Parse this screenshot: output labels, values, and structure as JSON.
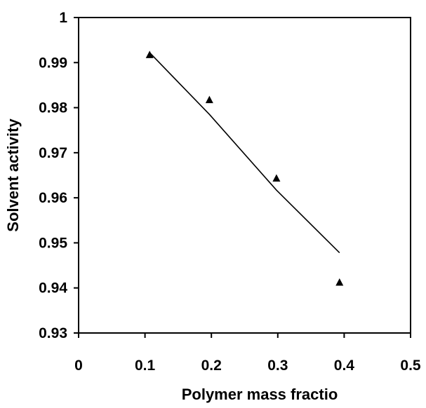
{
  "chart_data": {
    "type": "scatter",
    "title": "",
    "xlabel": "Polymer mass fractio",
    "ylabel": "Solvent activity",
    "xlim": [
      0,
      0.5
    ],
    "ylim": [
      0.93,
      1
    ],
    "x_ticks": [
      "0",
      "0.1",
      "0.2",
      "0.3",
      "0.4",
      "0.5"
    ],
    "y_ticks": [
      "0.93",
      "0.94",
      "0.95",
      "0.96",
      "0.97",
      "0.98",
      "0.99",
      "1"
    ],
    "grid": false,
    "legend": "none",
    "series": [
      {
        "style": "markers",
        "marker": "triangle",
        "color": "#000000",
        "x": [
          0.107,
          0.197,
          0.298,
          0.393
        ],
        "y": [
          0.9917,
          0.9817,
          0.9643,
          0.9412
        ]
      },
      {
        "style": "line",
        "color": "#000000",
        "x": [
          0.107,
          0.197,
          0.298,
          0.393
        ],
        "y": [
          0.9922,
          0.9785,
          0.9617,
          0.9478
        ]
      }
    ]
  }
}
